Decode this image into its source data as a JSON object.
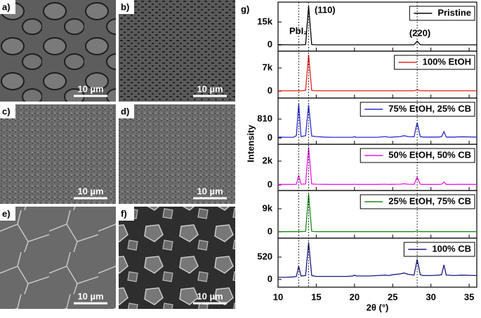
{
  "sem_panels": [
    {
      "label": "a)",
      "scale_bar": "10 µm"
    },
    {
      "label": "b)",
      "scale_bar": "10 µm"
    },
    {
      "label": "c)",
      "scale_bar": "10 µm"
    },
    {
      "label": "d)",
      "scale_bar": "10 µm"
    },
    {
      "label": "e)",
      "scale_bar": "10 µm"
    },
    {
      "label": "f)",
      "scale_bar": "10 µm"
    }
  ],
  "chart_label": "g)",
  "ylabel": "Intensity",
  "chart_data": [
    {
      "type": "line",
      "annotations": [
        "(110)",
        "PbI₂",
        "(220)"
      ],
      "reference_lines": [
        12.7,
        14.0,
        28.2
      ],
      "x": [
        10,
        11,
        12,
        12.4,
        12.7,
        13,
        13.6,
        14,
        14.4,
        15,
        16,
        17,
        18,
        19,
        19.8,
        20,
        20.2,
        21,
        22,
        23,
        24,
        24.5,
        25,
        26,
        26.5,
        27,
        27.8,
        28.2,
        28.6,
        29,
        30,
        31,
        31.4,
        31.7,
        32,
        33,
        34,
        36
      ],
      "series": [
        {
          "name": "Pristine",
          "color": "#000000",
          "values": [
            200,
            150,
            100,
            100,
            100,
            100,
            300,
            25500,
            300,
            100,
            100,
            100,
            100,
            100,
            100,
            100,
            100,
            100,
            100,
            100,
            100,
            100,
            100,
            100,
            100,
            100,
            200,
            2500,
            200,
            100,
            100,
            100,
            100,
            100,
            100,
            100,
            100,
            100
          ]
        }
      ],
      "xlim": [
        10,
        36
      ],
      "xticks": [
        10,
        15,
        20,
        25,
        30,
        35
      ],
      "ylim": [
        -4000,
        28000
      ],
      "yticks": [
        0,
        {
          "value": 15000,
          "label": "15k"
        }
      ]
    },
    {
      "type": "line",
      "x": [
        10,
        11,
        12,
        12.4,
        12.7,
        13,
        13.6,
        14,
        14.4,
        15,
        16,
        17,
        18,
        19,
        19.8,
        20,
        20.2,
        21,
        22,
        23,
        24,
        24.5,
        25,
        26,
        26.5,
        27,
        27.8,
        28.2,
        28.6,
        29,
        30,
        31,
        31.4,
        31.7,
        32,
        33,
        34,
        36
      ],
      "series": [
        {
          "name": "100% EtOH",
          "color": "#e8211b",
          "values": [
            100,
            100,
            100,
            100,
            100,
            100,
            200,
            11000,
            200,
            100,
            100,
            100,
            100,
            100,
            100,
            100,
            100,
            100,
            100,
            100,
            100,
            100,
            100,
            100,
            100,
            100,
            100,
            400,
            100,
            100,
            100,
            100,
            100,
            100,
            100,
            100,
            100,
            100
          ]
        }
      ],
      "xlim": [
        10,
        36
      ],
      "xticks": [
        10,
        15,
        20,
        25,
        30,
        35
      ],
      "ylim": [
        -2100,
        12100
      ],
      "yticks": [
        0,
        {
          "value": 7000,
          "label": "7k"
        }
      ]
    },
    {
      "type": "line",
      "x": [
        10,
        11,
        12,
        12.4,
        12.7,
        13,
        13.6,
        14,
        14.4,
        15,
        16,
        17,
        18,
        19,
        19.8,
        20,
        20.2,
        21,
        22,
        23,
        24,
        24.5,
        25,
        26,
        26.5,
        27,
        27.8,
        28.2,
        28.6,
        29,
        30,
        31,
        31.4,
        31.7,
        32,
        33,
        34,
        36
      ],
      "series": [
        {
          "name": "75% EtOH, 25% CB",
          "color": "#2a2ad4",
          "values": [
            40,
            30,
            30,
            100,
            1470,
            60,
            100,
            1410,
            80,
            60,
            40,
            30,
            30,
            30,
            30,
            60,
            30,
            30,
            30,
            30,
            60,
            30,
            40,
            60,
            100,
            60,
            50,
            660,
            60,
            40,
            40,
            40,
            60,
            270,
            40,
            40,
            50,
            40
          ]
        }
      ],
      "xlim": [
        10,
        36
      ],
      "xticks": [
        10,
        15,
        20,
        25,
        30,
        35
      ],
      "ylim": [
        -270,
        1710
      ],
      "yticks": [
        0,
        810
      ]
    },
    {
      "type": "line",
      "x": [
        10,
        11,
        12,
        12.4,
        12.7,
        13,
        13.6,
        14,
        14.4,
        15,
        16,
        17,
        18,
        19,
        19.8,
        20,
        20.2,
        21,
        22,
        23,
        24,
        24.5,
        25,
        26,
        26.5,
        27,
        27.8,
        28.2,
        28.6,
        29,
        30,
        31,
        31.4,
        31.7,
        32,
        33,
        34,
        36
      ],
      "series": [
        {
          "name": "50% EtOH, 50% CB",
          "color": "#e619e6",
          "values": [
            50,
            40,
            40,
            60,
            820,
            60,
            80,
            3180,
            80,
            60,
            50,
            40,
            40,
            40,
            40,
            60,
            40,
            40,
            40,
            40,
            60,
            40,
            50,
            60,
            100,
            60,
            50,
            650,
            60,
            40,
            40,
            40,
            60,
            240,
            40,
            40,
            50,
            40
          ]
        }
      ],
      "xlim": [
        10,
        36
      ],
      "xticks": [
        10,
        15,
        20,
        25,
        30,
        35
      ],
      "ylim": [
        -470,
        3410
      ],
      "yticks": [
        0,
        {
          "value": 2000,
          "label": "2k"
        }
      ]
    },
    {
      "type": "line",
      "x": [
        10,
        11,
        12,
        12.4,
        12.7,
        13,
        13.6,
        14,
        14.4,
        15,
        16,
        17,
        18,
        19,
        19.8,
        20,
        20.2,
        21,
        22,
        23,
        24,
        24.5,
        25,
        26,
        26.5,
        27,
        27.8,
        28.2,
        28.6,
        29,
        30,
        31,
        31.4,
        31.7,
        32,
        33,
        34,
        36
      ],
      "series": [
        {
          "name": "25% EtOH, 75% CB",
          "color": "#1a8c1a",
          "values": [
            100,
            100,
            100,
            100,
            200,
            100,
            200,
            14700,
            200,
            100,
            100,
            100,
            100,
            100,
            100,
            100,
            100,
            100,
            100,
            100,
            100,
            100,
            100,
            100,
            100,
            100,
            100,
            270,
            100,
            100,
            100,
            100,
            100,
            100,
            100,
            100,
            100,
            100
          ]
        }
      ],
      "xlim": [
        10,
        36
      ],
      "xticks": [
        10,
        15,
        20,
        25,
        30,
        35
      ],
      "ylim": [
        -2450,
        16100
      ],
      "yticks": [
        0,
        {
          "value": 9000,
          "label": "9k"
        }
      ]
    },
    {
      "type": "line",
      "xlabel": "2θ (°)",
      "x": [
        10,
        11,
        12,
        12.4,
        12.7,
        13,
        13.6,
        14,
        14.4,
        15,
        16,
        17,
        18,
        19,
        19.8,
        20,
        20.2,
        21,
        22,
        23,
        24,
        24.5,
        25,
        26,
        26.5,
        27,
        27.8,
        28.2,
        28.6,
        29,
        30,
        31,
        31.4,
        31.7,
        32,
        33,
        34,
        36
      ],
      "series": [
        {
          "name": "100% CB",
          "color": "#1a1a80",
          "values": [
            50,
            50,
            60,
            70,
            310,
            80,
            90,
            860,
            90,
            70,
            70,
            70,
            70,
            70,
            80,
            100,
            80,
            80,
            80,
            90,
            100,
            90,
            110,
            130,
            150,
            120,
            100,
            470,
            110,
            90,
            90,
            100,
            110,
            340,
            100,
            90,
            100,
            90
          ]
        }
      ],
      "xlim": [
        10,
        36
      ],
      "xticks": [
        10,
        15,
        20,
        25,
        30,
        35
      ],
      "ylim": [
        -180,
        960
      ],
      "yticks": [
        0,
        520
      ]
    }
  ]
}
